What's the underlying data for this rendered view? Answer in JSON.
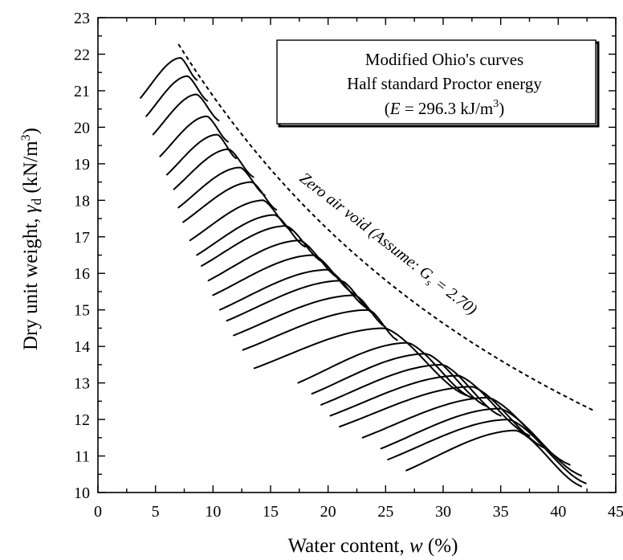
{
  "chart_data": {
    "type": "line",
    "xlabel": "Water content, w (%)",
    "ylabel": "Dry unit weight, γd (kN/m3)",
    "xlim": [
      0,
      45
    ],
    "ylim": [
      10,
      23
    ],
    "x_ticks": [
      "0",
      "5",
      "10",
      "15",
      "20",
      "25",
      "30",
      "35",
      "40",
      "45"
    ],
    "y_ticks": [
      "10",
      "11",
      "12",
      "13",
      "14",
      "15",
      "16",
      "17",
      "18",
      "19",
      "20",
      "21",
      "22",
      "23"
    ],
    "grid": false,
    "legend": {
      "position": "top-right",
      "line1": "Modified Ohio's curves",
      "line2": "Half standard Proctor energy",
      "line3_prefix": "(",
      "line3_var": "E",
      "line3_mid": " = 296.3 kJ/m",
      "line3_sup": "3",
      "line3_suffix": ")"
    },
    "zero_air_void": {
      "label_main": "Zero air void (Assume: G",
      "label_sub": "s",
      "label_tail": " = 2.70)",
      "gs": 2.7,
      "w_range": [
        7,
        43
      ]
    },
    "curves": [
      {
        "w_start": 3.7,
        "w_opt": 7.2,
        "gd_max": 21.9,
        "w_end": 8.6
      },
      {
        "w_start": 4.2,
        "w_opt": 7.8,
        "gd_max": 21.4,
        "w_end": 9.5
      },
      {
        "w_start": 4.8,
        "w_opt": 8.6,
        "gd_max": 20.9,
        "w_end": 10.5
      },
      {
        "w_start": 5.4,
        "w_opt": 9.5,
        "gd_max": 20.3,
        "w_end": 11.3
      },
      {
        "w_start": 6.0,
        "w_opt": 10.4,
        "gd_max": 19.8,
        "w_end": 12.0
      },
      {
        "w_start": 6.6,
        "w_opt": 11.4,
        "gd_max": 19.4,
        "w_end": 13.5
      },
      {
        "w_start": 7.0,
        "w_opt": 12.4,
        "gd_max": 18.9,
        "w_end": 14.5
      },
      {
        "w_start": 7.4,
        "w_opt": 13.4,
        "gd_max": 18.5,
        "w_end": 15.5
      },
      {
        "w_start": 8.0,
        "w_opt": 14.4,
        "gd_max": 18.0,
        "w_end": 16.8
      },
      {
        "w_start": 8.6,
        "w_opt": 15.4,
        "gd_max": 17.6,
        "w_end": 18.0
      },
      {
        "w_start": 9.0,
        "w_opt": 16.4,
        "gd_max": 17.3,
        "w_end": 19.5
      },
      {
        "w_start": 9.6,
        "w_opt": 17.6,
        "gd_max": 16.9,
        "w_end": 21.0
      },
      {
        "w_start": 10.0,
        "w_opt": 18.8,
        "gd_max": 16.5,
        "w_end": 22.4
      },
      {
        "w_start": 10.6,
        "w_opt": 20.0,
        "gd_max": 16.1,
        "w_end": 23.5
      },
      {
        "w_start": 11.2,
        "w_opt": 21.2,
        "gd_max": 15.8,
        "w_end": 24.0
      },
      {
        "w_start": 11.8,
        "w_opt": 22.4,
        "gd_max": 15.4,
        "w_end": 25.0
      },
      {
        "w_start": 12.6,
        "w_opt": 23.6,
        "gd_max": 15.0,
        "w_end": 26.0
      },
      {
        "w_start": 13.6,
        "w_opt": 25.0,
        "gd_max": 14.5,
        "w_end": 32.0
      },
      {
        "w_start": 17.4,
        "w_opt": 27.0,
        "gd_max": 14.1,
        "w_end": 32.5
      },
      {
        "w_start": 18.6,
        "w_opt": 28.6,
        "gd_max": 13.8,
        "w_end": 33.8
      },
      {
        "w_start": 19.4,
        "w_opt": 30.0,
        "gd_max": 13.5,
        "w_end": 35.0
      },
      {
        "w_start": 20.2,
        "w_opt": 31.4,
        "gd_max": 13.2,
        "w_end": 37.5
      },
      {
        "w_start": 21.0,
        "w_opt": 32.6,
        "gd_max": 12.9,
        "w_end": 39.0
      },
      {
        "w_start": 23.0,
        "w_opt": 34.0,
        "gd_max": 12.6,
        "w_end": 41.0
      },
      {
        "w_start": 24.6,
        "w_opt": 35.0,
        "gd_max": 12.3,
        "w_end": 42.0
      },
      {
        "w_start": 25.2,
        "w_opt": 35.8,
        "gd_max": 12.0,
        "w_end": 42.4
      },
      {
        "w_start": 26.8,
        "w_opt": 36.4,
        "gd_max": 11.7,
        "w_end": 42.0
      }
    ]
  }
}
